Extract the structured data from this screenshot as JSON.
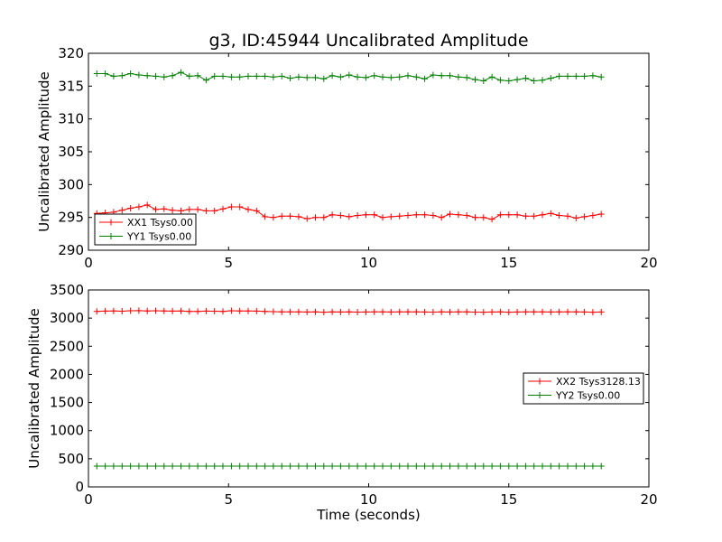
{
  "chart_data": [
    {
      "type": "line",
      "title": "g3, ID:45944 Uncalibrated Amplitude",
      "xlabel": "",
      "ylabel": "Uncalibrated Amplitude",
      "xlim": [
        0,
        20
      ],
      "ylim": [
        290,
        320
      ],
      "xticks": [
        "0",
        "5",
        "10",
        "15",
        "20"
      ],
      "yticks": [
        "290",
        "295",
        "300",
        "305",
        "310",
        "315",
        "320"
      ],
      "grid": false,
      "legend_position": "lower-left",
      "x": [
        0.3,
        0.6,
        0.9,
        1.2,
        1.5,
        1.8,
        2.1,
        2.4,
        2.7,
        3.0,
        3.3,
        3.6,
        3.9,
        4.2,
        4.5,
        4.8,
        5.1,
        5.4,
        5.7,
        6.0,
        6.3,
        6.6,
        6.9,
        7.2,
        7.5,
        7.8,
        8.1,
        8.4,
        8.7,
        9.0,
        9.3,
        9.6,
        9.9,
        10.2,
        10.5,
        10.8,
        11.1,
        11.4,
        11.7,
        12.0,
        12.3,
        12.6,
        12.9,
        13.2,
        13.5,
        13.8,
        14.1,
        14.4,
        14.7,
        15.0,
        15.3,
        15.6,
        15.9,
        16.2,
        16.5,
        16.8,
        17.1,
        17.4,
        17.7,
        18.0,
        18.3
      ],
      "series": [
        {
          "name": "XX1 Tsys0.00",
          "color": "#ff0000",
          "values": [
            295.6,
            295.7,
            295.8,
            296.1,
            296.4,
            296.6,
            296.9,
            296.2,
            296.3,
            296.1,
            296.0,
            296.2,
            296.2,
            296.0,
            296.0,
            296.3,
            296.6,
            296.6,
            296.2,
            296.0,
            295.1,
            295.0,
            295.2,
            295.2,
            295.1,
            294.8,
            295.0,
            295.0,
            295.4,
            295.3,
            295.1,
            295.3,
            295.4,
            295.4,
            295.0,
            295.1,
            295.2,
            295.3,
            295.4,
            295.4,
            295.3,
            295.0,
            295.5,
            295.4,
            295.3,
            295.0,
            295.0,
            294.7,
            295.4,
            295.4,
            295.4,
            295.2,
            295.2,
            295.4,
            295.6,
            295.3,
            295.2,
            294.9,
            295.1,
            295.3,
            295.5
          ]
        },
        {
          "name": "YY1 Tsys0.00",
          "color": "#008000",
          "values": [
            316.9,
            316.9,
            316.5,
            316.6,
            316.9,
            316.7,
            316.6,
            316.5,
            316.4,
            316.6,
            317.1,
            316.5,
            316.6,
            315.9,
            316.5,
            316.5,
            316.4,
            316.4,
            316.5,
            316.5,
            316.5,
            316.4,
            316.5,
            316.2,
            316.4,
            316.3,
            316.3,
            316.1,
            316.6,
            316.4,
            316.7,
            316.4,
            316.3,
            316.6,
            316.4,
            316.3,
            316.4,
            316.6,
            316.4,
            316.1,
            316.7,
            316.6,
            316.6,
            316.4,
            316.3,
            316.0,
            315.8,
            316.4,
            315.9,
            315.8,
            316.0,
            316.2,
            315.8,
            315.9,
            316.2,
            316.5,
            316.5,
            316.5,
            316.5,
            316.6,
            316.4
          ]
        }
      ]
    },
    {
      "type": "line",
      "title": "",
      "xlabel": "Time (seconds)",
      "ylabel": "Uncalibrated Amplitude",
      "xlim": [
        0,
        20
      ],
      "ylim": [
        0,
        3500
      ],
      "xticks": [
        "0",
        "5",
        "10",
        "15",
        "20"
      ],
      "yticks": [
        "0",
        "500",
        "1000",
        "1500",
        "2000",
        "2500",
        "3000",
        "3500"
      ],
      "grid": false,
      "legend_position": "right",
      "x": [
        0.3,
        0.6,
        0.9,
        1.2,
        1.5,
        1.8,
        2.1,
        2.4,
        2.7,
        3.0,
        3.3,
        3.6,
        3.9,
        4.2,
        4.5,
        4.8,
        5.1,
        5.4,
        5.7,
        6.0,
        6.3,
        6.6,
        6.9,
        7.2,
        7.5,
        7.8,
        8.1,
        8.4,
        8.7,
        9.0,
        9.3,
        9.6,
        9.9,
        10.2,
        10.5,
        10.8,
        11.1,
        11.4,
        11.7,
        12.0,
        12.3,
        12.6,
        12.9,
        13.2,
        13.5,
        13.8,
        14.1,
        14.4,
        14.7,
        15.0,
        15.3,
        15.6,
        15.9,
        16.2,
        16.5,
        16.8,
        17.1,
        17.4,
        17.7,
        18.0,
        18.3
      ],
      "series": [
        {
          "name": "XX2 Tsys3128.13",
          "color": "#ff0000",
          "values": [
            3120,
            3125,
            3128,
            3122,
            3130,
            3132,
            3128,
            3130,
            3126,
            3124,
            3128,
            3120,
            3118,
            3125,
            3122,
            3120,
            3130,
            3128,
            3126,
            3125,
            3118,
            3115,
            3112,
            3110,
            3112,
            3108,
            3110,
            3105,
            3112,
            3108,
            3110,
            3106,
            3108,
            3112,
            3110,
            3108,
            3110,
            3112,
            3110,
            3108,
            3106,
            3110,
            3108,
            3112,
            3110,
            3106,
            3105,
            3108,
            3110,
            3105,
            3108,
            3110,
            3112,
            3110,
            3108,
            3110,
            3112,
            3110,
            3108,
            3105,
            3108
          ]
        },
        {
          "name": "YY2 Tsys0.00",
          "color": "#008000",
          "values": [
            370,
            370,
            370,
            370,
            370,
            370,
            370,
            370,
            370,
            370,
            370,
            370,
            370,
            370,
            370,
            370,
            370,
            370,
            370,
            370,
            370,
            370,
            370,
            370,
            370,
            370,
            370,
            370,
            370,
            370,
            370,
            370,
            370,
            370,
            370,
            370,
            370,
            370,
            370,
            370,
            370,
            370,
            370,
            370,
            370,
            370,
            370,
            370,
            370,
            370,
            370,
            370,
            370,
            370,
            370,
            370,
            370,
            370,
            370,
            370,
            370
          ]
        }
      ]
    }
  ]
}
